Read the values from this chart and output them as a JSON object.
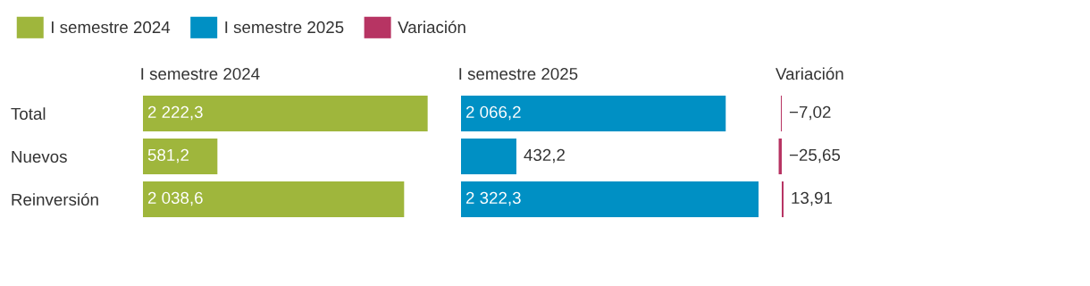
{
  "chart_data": [
    {
      "type": "bar",
      "orientation": "horizontal",
      "title": "I semestre 2024",
      "categories": [
        "Total",
        "Nuevos",
        "Reinversión"
      ],
      "tick_labels": "y",
      "legend": "top",
      "series": [
        {
          "name": "I semestre 2024",
          "color": "#9fb63c",
          "values": [
            2222.3,
            581.2,
            2038.6
          ],
          "value_labels": [
            "2 222,3",
            "581,2",
            "2 038,6"
          ]
        }
      ]
    },
    {
      "type": "bar",
      "orientation": "horizontal",
      "title": "I semestre 2025",
      "categories": [
        null,
        null,
        null
      ],
      "tick_labels": false,
      "legend": "top",
      "series": [
        {
          "name": "I semestre 2025",
          "color": "#0090c4",
          "values": [
            2066.2,
            432.2,
            2322.3
          ],
          "value_labels": [
            "2 066,2",
            "432,2",
            "2 322,3"
          ]
        }
      ]
    },
    {
      "type": "bar",
      "orientation": "horizontal",
      "title": "Variación",
      "categories": [
        null,
        null,
        null
      ],
      "tick_labels": false,
      "legend": "top",
      "series": [
        {
          "name": "Variación",
          "color": "#b73463",
          "values": [
            -7.02,
            -25.65,
            13.91
          ],
          "value_labels": [
            "−7,02",
            "−25,65",
            "13,91"
          ]
        }
      ]
    }
  ]
}
